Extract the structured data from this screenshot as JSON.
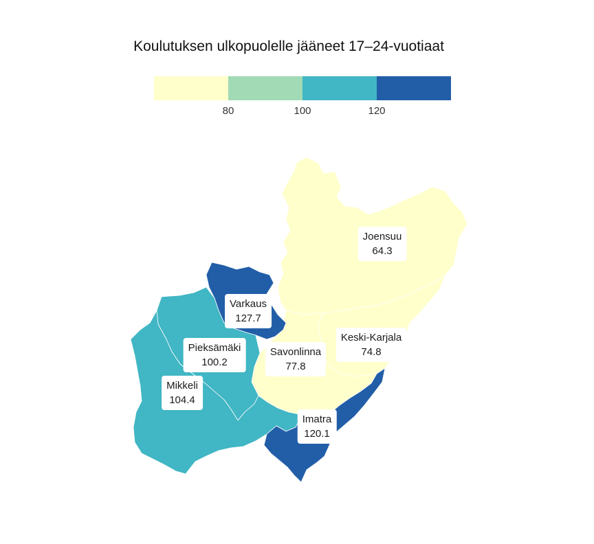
{
  "title": "Koulutuksen ulkopuolelle jääneet 17–24-vuotiaat",
  "legend": {
    "colors": [
      "#ffffcc",
      "#a1dab4",
      "#41b6c4",
      "#225ea8"
    ],
    "breaks": [
      "80",
      "100",
      "120"
    ]
  },
  "regions": [
    {
      "name": "Joensuu",
      "value": "64.3",
      "color": "#ffffcc"
    },
    {
      "name": "Keski-Karjala",
      "value": "74.8",
      "color": "#ffffcc"
    },
    {
      "name": "Savonlinna",
      "value": "77.8",
      "color": "#ffffcc"
    },
    {
      "name": "Pieksämäki",
      "value": "100.2",
      "color": "#41b6c4"
    },
    {
      "name": "Mikkeli",
      "value": "104.4",
      "color": "#41b6c4"
    },
    {
      "name": "Imatra",
      "value": "120.1",
      "color": "#225ea8"
    },
    {
      "name": "Varkaus",
      "value": "127.7",
      "color": "#225ea8"
    }
  ]
}
